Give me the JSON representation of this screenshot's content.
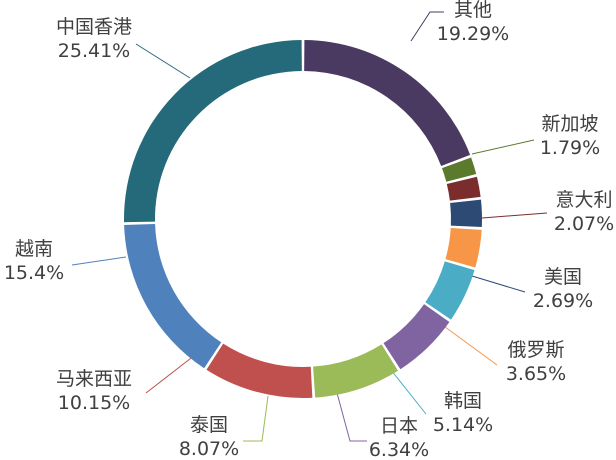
{
  "chart_data": {
    "type": "pie",
    "donut": true,
    "title": "",
    "slices": [
      {
        "label": "其他",
        "value": 19.29,
        "display": "19.29%",
        "color": "#4a3a62"
      },
      {
        "label": "新加坡",
        "value": 1.79,
        "display": "1.79%",
        "color": "#5c7a2c"
      },
      {
        "label": "意大利",
        "value": 2.07,
        "display": "2.07%",
        "color": "#7b2c2c"
      },
      {
        "label": "美国",
        "value": 2.69,
        "display": "2.69%",
        "color": "#2c4a74"
      },
      {
        "label": "俄罗斯",
        "value": 3.65,
        "display": "3.65%",
        "color": "#f79646"
      },
      {
        "label": "韩国",
        "value": 5.14,
        "display": "5.14%",
        "color": "#4bacc6"
      },
      {
        "label": "日本",
        "value": 6.34,
        "display": "6.34%",
        "color": "#8064a2"
      },
      {
        "label": "泰国",
        "value": 8.07,
        "display": "8.07%",
        "color": "#9bbb59"
      },
      {
        "label": "马来西亚",
        "value": 10.15,
        "display": "10.15%",
        "color": "#c0504d"
      },
      {
        "label": "越南",
        "value": 15.4,
        "display": "15.4%",
        "color": "#4f81bd"
      },
      {
        "label": "中国香港",
        "value": 25.41,
        "display": "25.41%",
        "color": "#246a7a"
      }
    ]
  }
}
